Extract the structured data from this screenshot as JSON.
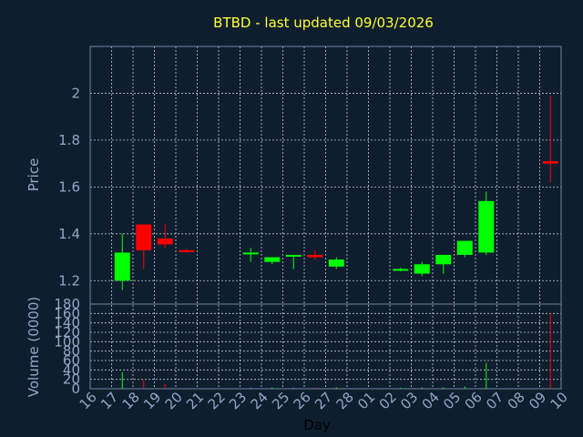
{
  "chart_data": {
    "type": "candlestick",
    "title": "BTBD - last updated 09/03/2026",
    "xlabel": "Day",
    "ylabel": "Price",
    "volume_label": "Volume (0000)",
    "x_ticks": [
      "16",
      "17",
      "18",
      "19",
      "20",
      "21",
      "22",
      "23",
      "24",
      "25",
      "26",
      "27",
      "28",
      "01",
      "02",
      "03",
      "04",
      "05",
      "06",
      "07",
      "08",
      "09",
      "10"
    ],
    "price_axis": {
      "ylim": [
        1.1,
        2.2
      ],
      "ticks": [
        1.2,
        1.4,
        1.6,
        1.8,
        2
      ]
    },
    "volume_axis": {
      "ylim": [
        0,
        180
      ],
      "ticks": [
        0,
        20,
        40,
        60,
        80,
        100,
        120,
        140,
        160,
        180
      ]
    },
    "grid": true,
    "colors": {
      "background": "#0f1e2f",
      "up": "#00ff00",
      "down": "#ff0000",
      "grid": "#ffffff",
      "axis_text": "#8fa8c6",
      "title": "#ffff33"
    },
    "candles": [
      {
        "day": "17",
        "open": 1.2,
        "high": 1.4,
        "low": 1.16,
        "close": 1.32,
        "volume": 35
      },
      {
        "day": "18",
        "open": 1.44,
        "high": 1.44,
        "low": 1.25,
        "close": 1.33,
        "volume": 18
      },
      {
        "day": "19",
        "open": 1.38,
        "high": 1.44,
        "low": 1.34,
        "close": 1.355,
        "volume": 10
      },
      {
        "day": "20",
        "open": 1.33,
        "high": 1.335,
        "low": 1.32,
        "close": 1.325,
        "volume": 2
      },
      {
        "day": "23",
        "open": 1.315,
        "high": 1.34,
        "low": 1.28,
        "close": 1.32,
        "volume": 2
      },
      {
        "day": "24",
        "open": 1.28,
        "high": 1.3,
        "low": 1.27,
        "close": 1.3,
        "volume": 3
      },
      {
        "day": "25",
        "open": 1.305,
        "high": 1.31,
        "low": 1.25,
        "close": 1.31,
        "volume": 2
      },
      {
        "day": "26",
        "open": 1.31,
        "high": 1.33,
        "low": 1.29,
        "close": 1.3,
        "volume": 3
      },
      {
        "day": "27",
        "open": 1.26,
        "high": 1.3,
        "low": 1.25,
        "close": 1.29,
        "volume": 3
      },
      {
        "day": "02",
        "open": 1.245,
        "high": 1.255,
        "low": 1.24,
        "close": 1.25,
        "volume": 2
      },
      {
        "day": "03",
        "open": 1.23,
        "high": 1.28,
        "low": 1.22,
        "close": 1.27,
        "volume": 3
      },
      {
        "day": "04",
        "open": 1.27,
        "high": 1.31,
        "low": 1.23,
        "close": 1.31,
        "volume": 3
      },
      {
        "day": "05",
        "open": 1.31,
        "high": 1.37,
        "low": 1.3,
        "close": 1.37,
        "volume": 5
      },
      {
        "day": "06",
        "open": 1.32,
        "high": 1.58,
        "low": 1.31,
        "close": 1.54,
        "volume": 55
      },
      {
        "day": "09",
        "open": 1.71,
        "high": 1.99,
        "low": 1.62,
        "close": 1.7,
        "volume": 160
      }
    ]
  }
}
